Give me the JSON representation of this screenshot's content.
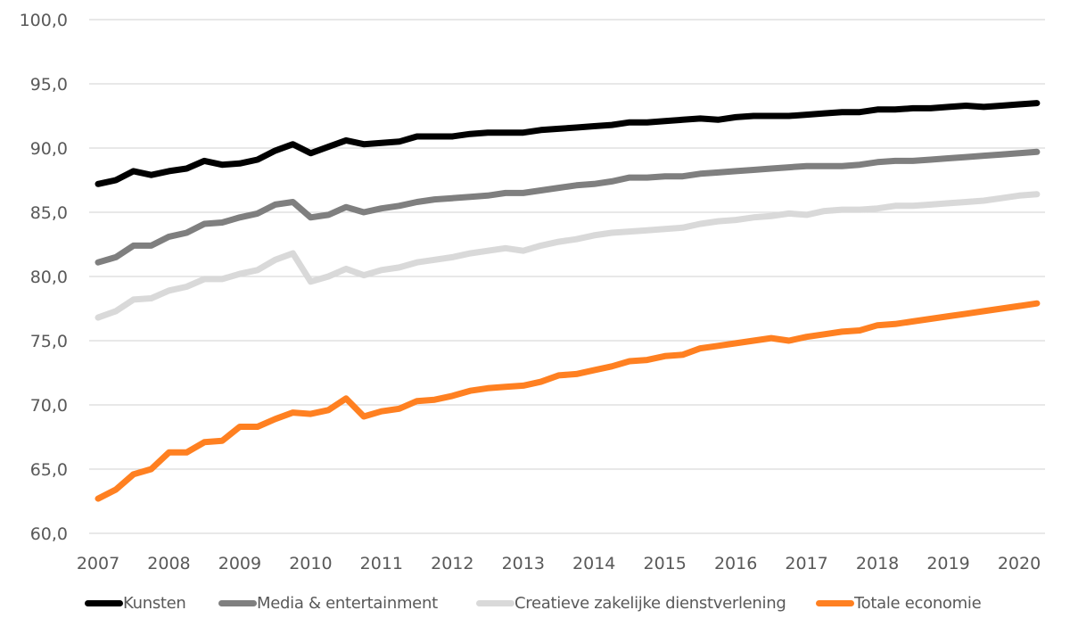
{
  "chart_data": {
    "type": "line",
    "title": "",
    "xlabel": "",
    "ylabel": "",
    "ylim": [
      60,
      100
    ],
    "yticks": [
      "60,0",
      "65,0",
      "70,0",
      "75,0",
      "80,0",
      "85,0",
      "90,0",
      "95,0",
      "100,0"
    ],
    "ytick_values": [
      60,
      65,
      70,
      75,
      80,
      85,
      90,
      95,
      100
    ],
    "xticks": [
      "2007",
      "2008",
      "2009",
      "2010",
      "2011",
      "2012",
      "2013",
      "2014",
      "2015",
      "2016",
      "2017",
      "2018",
      "2019",
      "2020"
    ],
    "x_start": "2007 Q1",
    "x_step": "quarter",
    "grid": "horizontal",
    "legend_position": "bottom",
    "series": [
      {
        "name": "Kunsten",
        "color": "#000000",
        "values": [
          87.2,
          87.5,
          88.2,
          87.9,
          88.2,
          88.4,
          89.0,
          88.7,
          88.8,
          89.1,
          89.8,
          90.3,
          89.6,
          90.1,
          90.6,
          90.3,
          90.4,
          90.5,
          90.9,
          90.9,
          90.9,
          91.1,
          91.2,
          91.2,
          91.2,
          91.4,
          91.5,
          91.6,
          91.7,
          91.8,
          92.0,
          92.0,
          92.1,
          92.2,
          92.3,
          92.2,
          92.4,
          92.5,
          92.5,
          92.5,
          92.6,
          92.7,
          92.8,
          92.8,
          93.0,
          93.0,
          93.1,
          93.1,
          93.2,
          93.3,
          93.2,
          93.3,
          93.4,
          93.5
        ]
      },
      {
        "name": "Media & entertainment",
        "color": "#7f7f7f",
        "values": [
          81.1,
          81.5,
          82.4,
          82.4,
          83.1,
          83.4,
          84.1,
          84.2,
          84.6,
          84.9,
          85.6,
          85.8,
          84.6,
          84.8,
          85.4,
          85.0,
          85.3,
          85.5,
          85.8,
          86.0,
          86.1,
          86.2,
          86.3,
          86.5,
          86.5,
          86.7,
          86.9,
          87.1,
          87.2,
          87.4,
          87.7,
          87.7,
          87.8,
          87.8,
          88.0,
          88.1,
          88.2,
          88.3,
          88.4,
          88.5,
          88.6,
          88.6,
          88.6,
          88.7,
          88.9,
          89.0,
          89.0,
          89.1,
          89.2,
          89.3,
          89.4,
          89.5,
          89.6,
          89.7
        ]
      },
      {
        "name": "Creatieve zakelijke dienstverlening",
        "color": "#d9d9d9",
        "values": [
          76.8,
          77.3,
          78.2,
          78.3,
          78.9,
          79.2,
          79.8,
          79.8,
          80.2,
          80.5,
          81.3,
          81.8,
          79.6,
          80.0,
          80.6,
          80.1,
          80.5,
          80.7,
          81.1,
          81.3,
          81.5,
          81.8,
          82.0,
          82.2,
          82.0,
          82.4,
          82.7,
          82.9,
          83.2,
          83.4,
          83.5,
          83.6,
          83.7,
          83.8,
          84.1,
          84.3,
          84.4,
          84.6,
          84.7,
          84.9,
          84.8,
          85.1,
          85.2,
          85.2,
          85.3,
          85.5,
          85.5,
          85.6,
          85.7,
          85.8,
          85.9,
          86.1,
          86.3,
          86.4
        ]
      },
      {
        "name": "Totale economie",
        "color": "#ff8021",
        "values": [
          62.7,
          63.4,
          64.6,
          65.0,
          66.3,
          66.3,
          67.1,
          67.2,
          68.3,
          68.3,
          68.9,
          69.4,
          69.3,
          69.6,
          70.5,
          69.1,
          69.5,
          69.7,
          70.3,
          70.4,
          70.7,
          71.1,
          71.3,
          71.4,
          71.5,
          71.8,
          72.3,
          72.4,
          72.7,
          73.0,
          73.4,
          73.5,
          73.8,
          73.9,
          74.4,
          74.6,
          74.8,
          75.0,
          75.2,
          75.0,
          75.3,
          75.5,
          75.7,
          75.8,
          76.2,
          76.3,
          76.5,
          76.7,
          76.9,
          77.1,
          77.3,
          77.5,
          77.7,
          77.9
        ]
      }
    ]
  },
  "colors": {
    "grid": "#d9d9d9",
    "tick_text": "#595959",
    "background": "#ffffff"
  }
}
